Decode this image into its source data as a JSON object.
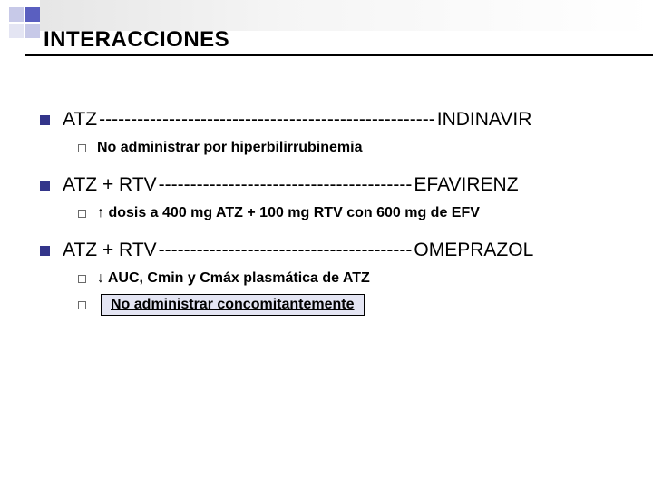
{
  "title": "INTERACCIONES",
  "colors": {
    "bullet_main": "#33358a",
    "bullet_sub_border": "#6a6a6a",
    "box_bg": "#e4e5f3",
    "box_border": "#000000",
    "underline": "#000000",
    "deco": [
      "#c7c9e8",
      "#5a5fc0",
      "#e4e5f3",
      "#c7c9e8"
    ]
  },
  "items": [
    {
      "left": "ATZ ",
      "dash": "-----------------------------------------------------",
      "right": "INDINAVIR",
      "subs": [
        {
          "text": "No administrar por hiperbilirrubinemia",
          "boxed": false
        }
      ]
    },
    {
      "left": "ATZ + RTV ",
      "dash": "----------------------------------------",
      "right": " EFAVIRENZ",
      "subs": [
        {
          "text": "↑ dosis a 400 mg ATZ + 100 mg RTV con 600 mg de EFV",
          "boxed": false
        }
      ]
    },
    {
      "left": "ATZ + RTV ",
      "dash": "----------------------------------------",
      "right": "OMEPRAZOL",
      "subs": [
        {
          "text": "↓ AUC, Cmin y Cmáx plasmática de ATZ",
          "boxed": false
        },
        {
          "text": "No administrar concomitantemente",
          "boxed": true
        }
      ]
    }
  ]
}
